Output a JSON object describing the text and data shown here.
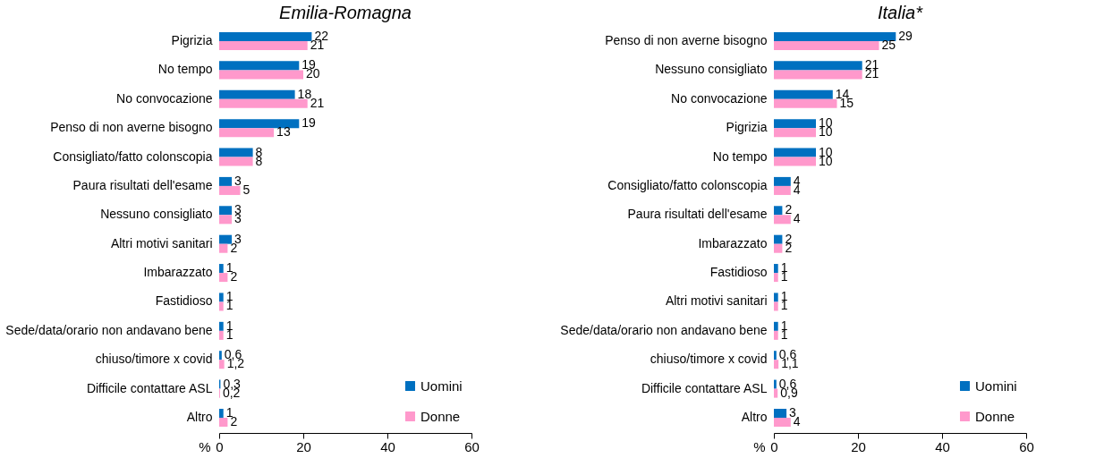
{
  "chart_data": [
    {
      "type": "bar",
      "orientation": "horizontal",
      "title": "Emilia-Romagna",
      "xlabel": "%",
      "xlim": [
        0,
        60
      ],
      "xticks": [
        0,
        20,
        40,
        60
      ],
      "grid": false,
      "legend": "bottom right",
      "categories": [
        "Pigrizia",
        "No tempo",
        "No convocazione",
        "Penso di non averne bisogno",
        "Consigliato/fatto colonscopia",
        "Paura risultati dell'esame",
        "Nessuno consigliato",
        "Altri motivi sanitari",
        "Imbarazzato",
        "Fastidioso",
        "Sede/data/orario non andavano bene",
        "chiuso/timore x covid",
        "Difficile contattare ASL",
        "Altro"
      ],
      "series": [
        {
          "name": "Uomini",
          "color": "#0070c0",
          "values": [
            22,
            19,
            18,
            19,
            8,
            3,
            3,
            3,
            1,
            1,
            1,
            0.6,
            0.3,
            1
          ],
          "value_labels": [
            "22",
            "19",
            "18",
            "19",
            "8",
            "3",
            "3",
            "3",
            "1",
            "1",
            "1",
            "0,6",
            "0,3",
            "1"
          ]
        },
        {
          "name": "Donne",
          "color": "#ff99cc",
          "values": [
            21,
            20,
            21,
            13,
            8,
            5,
            3,
            2,
            2,
            1,
            1,
            1.2,
            0.2,
            2
          ],
          "value_labels": [
            "21",
            "20",
            "21",
            "13",
            "8",
            "5",
            "3",
            "2",
            "2",
            "1",
            "1",
            "1,2",
            "0,2",
            "2"
          ]
        }
      ]
    },
    {
      "type": "bar",
      "orientation": "horizontal",
      "title": "Italia*",
      "xlabel": "%",
      "xlim": [
        0,
        60
      ],
      "xticks": [
        0,
        20,
        40,
        60
      ],
      "grid": false,
      "legend": "bottom right",
      "categories": [
        "Penso di non averne bisogno",
        "Nessuno consigliato",
        "No convocazione",
        "Pigrizia",
        "No tempo",
        "Consigliato/fatto colonscopia",
        "Paura risultati dell'esame",
        "Imbarazzato",
        "Fastidioso",
        "Altri motivi sanitari",
        "Sede/data/orario non andavano bene",
        "chiuso/timore x covid",
        "Difficile contattare ASL",
        "Altro"
      ],
      "series": [
        {
          "name": "Uomini",
          "color": "#0070c0",
          "values": [
            29,
            21,
            14,
            10,
            10,
            4,
            2,
            2,
            1,
            1,
            1,
            0.6,
            0.6,
            3
          ],
          "value_labels": [
            "29",
            "21",
            "14",
            "10",
            "10",
            "4",
            "2",
            "2",
            "1",
            "1",
            "1",
            "0,6",
            "0,6",
            "3"
          ]
        },
        {
          "name": "Donne",
          "color": "#ff99cc",
          "values": [
            25,
            21,
            15,
            10,
            10,
            4,
            4,
            2,
            1,
            1,
            1,
            1.1,
            0.9,
            4
          ],
          "value_labels": [
            "25",
            "21",
            "15",
            "10",
            "10",
            "4",
            "4",
            "2",
            "1",
            "1",
            "1",
            "1,1",
            "0,9",
            "4"
          ]
        }
      ]
    }
  ]
}
